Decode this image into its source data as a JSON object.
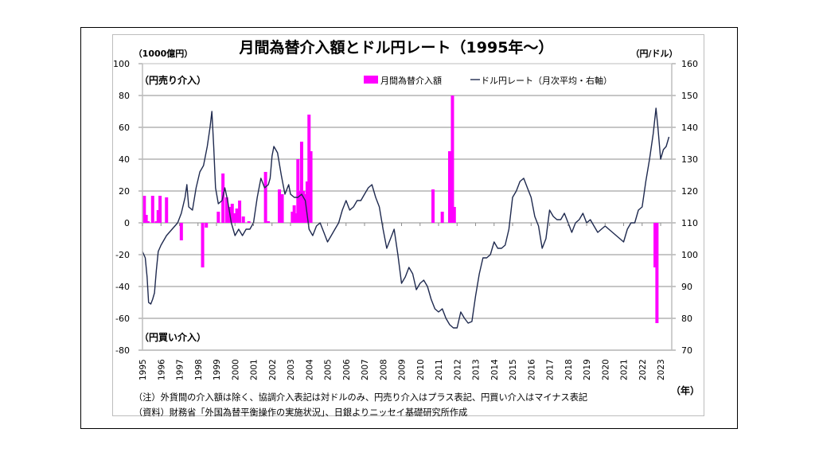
{
  "chart_data": {
    "type": "bar+line",
    "title": "月間為替介入額とドル円レート（1995年～）",
    "left_axis_unit": "（1000億円）",
    "right_axis_unit": "（円/ドル）",
    "x_unit": "（年）",
    "annotation_top": "（円売り介入）",
    "annotation_bottom": "（円買い介入）",
    "legend": {
      "position": "top-right",
      "bar_label": "月間為替介入額",
      "line_label": "ドル円レート（月次平均・右軸）"
    },
    "y_left": {
      "min": -80,
      "max": 100,
      "ticks": [
        100,
        80,
        60,
        40,
        20,
        0,
        -20,
        -40,
        -60,
        -80
      ],
      "negative_color": "#c00000"
    },
    "y_right": {
      "min": 70,
      "max": 160,
      "ticks": [
        160,
        150,
        140,
        130,
        120,
        110,
        100,
        90,
        80,
        70
      ]
    },
    "x_start": 1995.0,
    "x_end": 2023.6,
    "x_ticks": [
      "1995",
      "1996",
      "1997",
      "1998",
      "1999",
      "2000",
      "2001",
      "2002",
      "2003",
      "2004",
      "2005",
      "2006",
      "2007",
      "2008",
      "2009",
      "2010",
      "2011",
      "2012",
      "2013",
      "2014",
      "2015",
      "2016",
      "2017",
      "2018",
      "2019",
      "2020",
      "2021",
      "2022",
      "2023"
    ],
    "grid": true,
    "colors": {
      "bar": "#ff00ff",
      "line": "#1f2a4f",
      "grid": "#8c8c8c"
    },
    "bars": [
      {
        "t": 1995.1,
        "v": 17
      },
      {
        "t": 1995.2,
        "v": 5
      },
      {
        "t": 1995.3,
        "v": 1
      },
      {
        "t": 1995.55,
        "v": 17
      },
      {
        "t": 1995.75,
        "v": 1
      },
      {
        "t": 1995.85,
        "v": 8
      },
      {
        "t": 1995.95,
        "v": 17
      },
      {
        "t": 1996.3,
        "v": 16
      },
      {
        "t": 1997.1,
        "v": -11
      },
      {
        "t": 1998.25,
        "v": -28
      },
      {
        "t": 1998.45,
        "v": -3
      },
      {
        "t": 1999.1,
        "v": 7
      },
      {
        "t": 1999.35,
        "v": 31
      },
      {
        "t": 1999.55,
        "v": 16
      },
      {
        "t": 1999.7,
        "v": 10
      },
      {
        "t": 1999.85,
        "v": 12
      },
      {
        "t": 2000.0,
        "v": 6
      },
      {
        "t": 2000.1,
        "v": 9
      },
      {
        "t": 2000.25,
        "v": 14
      },
      {
        "t": 2000.45,
        "v": 4
      },
      {
        "t": 2000.75,
        "v": 1
      },
      {
        "t": 2001.65,
        "v": 32
      },
      {
        "t": 2001.8,
        "v": 1
      },
      {
        "t": 2002.4,
        "v": 21
      },
      {
        "t": 2002.55,
        "v": 18
      },
      {
        "t": 2003.1,
        "v": 7
      },
      {
        "t": 2003.2,
        "v": 11
      },
      {
        "t": 2003.3,
        "v": 6
      },
      {
        "t": 2003.4,
        "v": 40
      },
      {
        "t": 2003.5,
        "v": 20
      },
      {
        "t": 2003.6,
        "v": 51
      },
      {
        "t": 2003.7,
        "v": 20
      },
      {
        "t": 2003.8,
        "v": 18
      },
      {
        "t": 2003.9,
        "v": 26
      },
      {
        "t": 2004.0,
        "v": 68
      },
      {
        "t": 2004.1,
        "v": 45
      },
      {
        "t": 2010.7,
        "v": 21
      },
      {
        "t": 2011.2,
        "v": 7
      },
      {
        "t": 2011.6,
        "v": 45
      },
      {
        "t": 2011.75,
        "v": 80
      },
      {
        "t": 2011.85,
        "v": 10
      },
      {
        "t": 2022.7,
        "v": -28
      },
      {
        "t": 2022.8,
        "v": -63
      }
    ],
    "line": [
      [
        1995.0,
        101
      ],
      [
        1995.15,
        99
      ],
      [
        1995.25,
        93
      ],
      [
        1995.33,
        85
      ],
      [
        1995.45,
        84.5
      ],
      [
        1995.55,
        86
      ],
      [
        1995.65,
        88
      ],
      [
        1995.75,
        95
      ],
      [
        1995.85,
        101
      ],
      [
        1996.0,
        103
      ],
      [
        1996.3,
        106
      ],
      [
        1996.6,
        108
      ],
      [
        1996.9,
        110
      ],
      [
        1997.1,
        113
      ],
      [
        1997.3,
        118
      ],
      [
        1997.4,
        122
      ],
      [
        1997.5,
        115
      ],
      [
        1997.7,
        114
      ],
      [
        1997.9,
        121
      ],
      [
        1998.1,
        126
      ],
      [
        1998.3,
        128
      ],
      [
        1998.5,
        134
      ],
      [
        1998.65,
        140
      ],
      [
        1998.75,
        145
      ],
      [
        1998.85,
        134
      ],
      [
        1998.95,
        121
      ],
      [
        1999.1,
        116
      ],
      [
        1999.3,
        117
      ],
      [
        1999.45,
        121
      ],
      [
        1999.6,
        117
      ],
      [
        1999.8,
        110
      ],
      [
        2000.0,
        106
      ],
      [
        2000.2,
        108
      ],
      [
        2000.4,
        106
      ],
      [
        2000.6,
        108
      ],
      [
        2000.8,
        108
      ],
      [
        2001.0,
        110
      ],
      [
        2001.2,
        118
      ],
      [
        2001.4,
        124
      ],
      [
        2001.6,
        121
      ],
      [
        2001.8,
        122
      ],
      [
        2001.9,
        124
      ],
      [
        2002.0,
        131
      ],
      [
        2002.1,
        134
      ],
      [
        2002.3,
        132
      ],
      [
        2002.5,
        125
      ],
      [
        2002.7,
        119
      ],
      [
        2002.9,
        122
      ],
      [
        2003.0,
        119
      ],
      [
        2003.2,
        118
      ],
      [
        2003.4,
        118
      ],
      [
        2003.6,
        119
      ],
      [
        2003.8,
        117
      ],
      [
        2004.0,
        108
      ],
      [
        2004.2,
        106
      ],
      [
        2004.4,
        109
      ],
      [
        2004.6,
        110
      ],
      [
        2004.8,
        107
      ],
      [
        2005.0,
        104
      ],
      [
        2005.2,
        106
      ],
      [
        2005.4,
        108
      ],
      [
        2005.6,
        110
      ],
      [
        2005.8,
        114
      ],
      [
        2006.0,
        117
      ],
      [
        2006.2,
        114
      ],
      [
        2006.4,
        115
      ],
      [
        2006.6,
        117
      ],
      [
        2006.8,
        117
      ],
      [
        2007.0,
        119
      ],
      [
        2007.2,
        121
      ],
      [
        2007.4,
        122
      ],
      [
        2007.6,
        118
      ],
      [
        2007.8,
        115
      ],
      [
        2008.0,
        108
      ],
      [
        2008.2,
        102
      ],
      [
        2008.4,
        105
      ],
      [
        2008.6,
        108
      ],
      [
        2008.8,
        100
      ],
      [
        2009.0,
        91
      ],
      [
        2009.2,
        93
      ],
      [
        2009.4,
        96
      ],
      [
        2009.6,
        94
      ],
      [
        2009.8,
        89
      ],
      [
        2010.0,
        91
      ],
      [
        2010.2,
        92
      ],
      [
        2010.4,
        90
      ],
      [
        2010.6,
        86
      ],
      [
        2010.8,
        83
      ],
      [
        2011.0,
        82
      ],
      [
        2011.2,
        83
      ],
      [
        2011.4,
        80
      ],
      [
        2011.6,
        78
      ],
      [
        2011.8,
        77
      ],
      [
        2012.0,
        77
      ],
      [
        2012.2,
        82
      ],
      [
        2012.4,
        80
      ],
      [
        2012.6,
        78.5
      ],
      [
        2012.8,
        79
      ],
      [
        2013.0,
        87
      ],
      [
        2013.2,
        94
      ],
      [
        2013.4,
        99
      ],
      [
        2013.6,
        99
      ],
      [
        2013.8,
        100
      ],
      [
        2014.0,
        104
      ],
      [
        2014.2,
        102
      ],
      [
        2014.4,
        102
      ],
      [
        2014.6,
        103
      ],
      [
        2014.8,
        108
      ],
      [
        2015.0,
        118
      ],
      [
        2015.2,
        120
      ],
      [
        2015.4,
        123
      ],
      [
        2015.6,
        124
      ],
      [
        2015.8,
        121
      ],
      [
        2016.0,
        118
      ],
      [
        2016.2,
        112
      ],
      [
        2016.4,
        109
      ],
      [
        2016.6,
        102
      ],
      [
        2016.8,
        105
      ],
      [
        2017.0,
        114
      ],
      [
        2017.2,
        112
      ],
      [
        2017.4,
        111
      ],
      [
        2017.6,
        111
      ],
      [
        2017.8,
        113
      ],
      [
        2018.0,
        110
      ],
      [
        2018.2,
        107
      ],
      [
        2018.4,
        110
      ],
      [
        2018.6,
        111
      ],
      [
        2018.8,
        113
      ],
      [
        2019.0,
        110
      ],
      [
        2019.2,
        111
      ],
      [
        2019.4,
        109
      ],
      [
        2019.6,
        107
      ],
      [
        2019.8,
        108
      ],
      [
        2020.0,
        109
      ],
      [
        2020.2,
        108
      ],
      [
        2020.4,
        107
      ],
      [
        2020.6,
        106
      ],
      [
        2020.8,
        105
      ],
      [
        2021.0,
        104
      ],
      [
        2021.2,
        108
      ],
      [
        2021.4,
        110
      ],
      [
        2021.6,
        110
      ],
      [
        2021.8,
        114
      ],
      [
        2022.0,
        115
      ],
      [
        2022.2,
        123
      ],
      [
        2022.4,
        130
      ],
      [
        2022.5,
        134
      ],
      [
        2022.6,
        138
      ],
      [
        2022.75,
        146
      ],
      [
        2022.85,
        140
      ],
      [
        2023.0,
        130
      ],
      [
        2023.15,
        133
      ],
      [
        2023.3,
        134
      ],
      [
        2023.45,
        137
      ]
    ],
    "note_line1": "（注）外貨間の介入額は除く、協調介入表記は対ドルのみ、円売り介入はプラス表記、円買い介入はマイナス表記",
    "note_line2": "（資料）財務省「外国為替平衡操作の実施状況」、日銀よりニッセイ基礎研究所作成"
  }
}
